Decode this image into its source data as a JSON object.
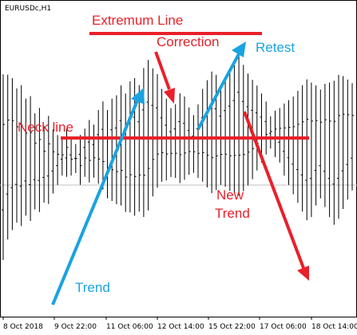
{
  "chart_data": {
    "type": "ohlc",
    "symbol_label": "EURUSDc,H1",
    "x_tick_labels": [
      "8 Oct 2018",
      "9 Oct 22:00",
      "11 Oct 06:00",
      "12 Oct 14:00",
      "15 Oct 22:00",
      "17 Oct 06:00",
      "18 Oct 14:00"
    ],
    "bars": [
      [
        0.0,
        0.98
      ],
      [
        0.1,
        0.95
      ],
      [
        0.15,
        0.92
      ],
      [
        0.2,
        0.86
      ],
      [
        0.18,
        0.88
      ],
      [
        0.25,
        0.8
      ],
      [
        0.22,
        0.82
      ],
      [
        0.3,
        0.72
      ],
      [
        0.28,
        0.75
      ],
      [
        0.35,
        0.65
      ],
      [
        0.33,
        0.7
      ],
      [
        0.4,
        0.62
      ],
      [
        0.45,
        0.58
      ],
      [
        0.5,
        0.55
      ],
      [
        0.48,
        0.6
      ],
      [
        0.55,
        0.5
      ],
      [
        0.52,
        0.52
      ],
      [
        0.58,
        0.45
      ],
      [
        0.6,
        0.48
      ],
      [
        0.65,
        0.44
      ],
      [
        0.62,
        0.47
      ],
      [
        0.7,
        0.42
      ],
      [
        0.75,
        0.38
      ],
      [
        0.72,
        0.35
      ],
      [
        0.78,
        0.32
      ],
      [
        0.8,
        0.3
      ],
      [
        0.85,
        0.28
      ],
      [
        0.82,
        0.26
      ],
      [
        0.88,
        0.24
      ],
      [
        0.9,
        0.22
      ],
      [
        0.86,
        0.25
      ],
      [
        0.95,
        0.2
      ],
      [
        0.98,
        0.22
      ],
      [
        0.92,
        0.3
      ],
      [
        0.88,
        0.35
      ],
      [
        0.8,
        0.4
      ],
      [
        0.75,
        0.42
      ],
      [
        0.7,
        0.45
      ],
      [
        0.72,
        0.44
      ],
      [
        0.78,
        0.4
      ],
      [
        0.76,
        0.42
      ],
      [
        0.7,
        0.46
      ],
      [
        0.66,
        0.48
      ],
      [
        0.72,
        0.44
      ],
      [
        0.8,
        0.4
      ],
      [
        0.85,
        0.36
      ],
      [
        0.9,
        0.32
      ],
      [
        0.88,
        0.34
      ],
      [
        0.82,
        0.38
      ],
      [
        0.86,
        0.36
      ],
      [
        0.9,
        0.33
      ],
      [
        0.94,
        0.31
      ],
      [
        1.0,
        0.28
      ],
      [
        0.93,
        0.32
      ],
      [
        0.88,
        0.36
      ],
      [
        0.84,
        0.4
      ],
      [
        0.8,
        0.45
      ],
      [
        0.75,
        0.5
      ],
      [
        0.7,
        0.55
      ],
      [
        0.6,
        0.62
      ],
      [
        0.55,
        0.66
      ],
      [
        0.52,
        0.68
      ],
      [
        0.45,
        0.72
      ],
      [
        0.4,
        0.75
      ],
      [
        0.35,
        0.78
      ],
      [
        0.3,
        0.82
      ],
      [
        0.25,
        0.86
      ],
      [
        0.2,
        0.9
      ],
      [
        0.22,
        0.88
      ],
      [
        0.28,
        0.85
      ],
      [
        0.32,
        0.82
      ],
      [
        0.27,
        0.86
      ],
      [
        0.22,
        0.88
      ],
      [
        0.18,
        0.9
      ],
      [
        0.2,
        0.92
      ],
      [
        0.25,
        0.9
      ],
      [
        0.3,
        0.87
      ],
      [
        0.35,
        0.84
      ]
    ]
  },
  "annotations": {
    "extremum_line": "Extremum Line",
    "correction": "Correction",
    "retest": "Retest",
    "neck_line": "Neck line",
    "new": "New",
    "trend_down": "Trend",
    "trend_up": "Trend"
  },
  "colors": {
    "red": "#e8202a",
    "blue": "#1aa3e0",
    "gray_level": "#c0c0c0"
  }
}
